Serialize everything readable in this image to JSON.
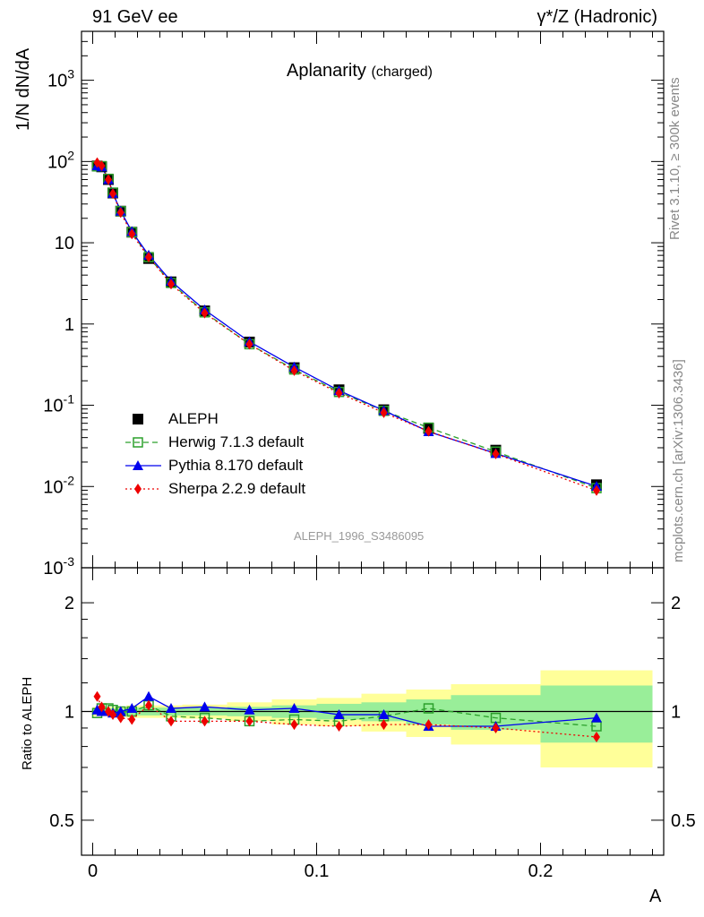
{
  "header": {
    "left": "91 GeV ee",
    "right": "γ*/Z (Hadronic)"
  },
  "side": {
    "rivet": "Rivet 3.1.10, ≥ 300k events",
    "mcplots": "mcplots.cern.ch [arXiv:1306.3436]"
  },
  "main_panel": {
    "title": "Aplanarity",
    "title_suffix": "(charged)",
    "ylabel": "1/N dN/dA",
    "watermark": "ALEPH_1996_S3486095",
    "y_ticks": [
      "10^-3",
      "10^-2",
      "10^-1",
      "1",
      "10",
      "10^2",
      "10^3"
    ]
  },
  "ratio_panel": {
    "ylabel": "Ratio to ALEPH",
    "y_ticks": [
      "0.5",
      "1",
      "2"
    ]
  },
  "x_axis": {
    "label": "A",
    "ticks": [
      "0",
      "0.1",
      "0.2"
    ]
  },
  "legend": [
    {
      "label": "ALEPH",
      "color": "#000000",
      "marker": "square-filled",
      "line": "none"
    },
    {
      "label": "Herwig 7.1.3 default",
      "color": "#2ca02c",
      "marker": "square-open",
      "line": "dashed"
    },
    {
      "label": "Pythia 8.170 default",
      "color": "#0000ee",
      "marker": "triangle",
      "line": "solid"
    },
    {
      "label": "Sherpa 2.2.9 default",
      "color": "#ee0000",
      "marker": "diamond",
      "line": "dotted"
    }
  ],
  "chart_data": {
    "type": "scatter",
    "xlim": [
      -0.005,
      0.255
    ],
    "ylim_main": [
      0.001,
      4000
    ],
    "y_scale_main": "log",
    "ylim_ratio": [
      0.4,
      2.5
    ],
    "y_scale_ratio": "log",
    "x": [
      0.002,
      0.004,
      0.007,
      0.009,
      0.0125,
      0.0175,
      0.025,
      0.035,
      0.05,
      0.07,
      0.09,
      0.11,
      0.13,
      0.15,
      0.18,
      0.225
    ],
    "data": [
      88,
      86,
      60,
      41,
      24.5,
      13.5,
      6.4,
      3.3,
      1.45,
      0.6,
      0.29,
      0.155,
      0.088,
      0.052,
      0.028,
      0.0105
    ],
    "data_band_inner": [
      0.02,
      0.02,
      0.02,
      0.02,
      0.02,
      0.025,
      0.025,
      0.025,
      0.025,
      0.03,
      0.04,
      0.05,
      0.06,
      0.08,
      0.11,
      0.18
    ],
    "data_band_outer": [
      0.03,
      0.03,
      0.03,
      0.03,
      0.03,
      0.04,
      0.04,
      0.04,
      0.045,
      0.06,
      0.08,
      0.09,
      0.12,
      0.15,
      0.19,
      0.3
    ],
    "x_bin_edges": [
      0,
      0.003,
      0.005,
      0.008,
      0.01,
      0.015,
      0.02,
      0.03,
      0.04,
      0.06,
      0.08,
      0.1,
      0.12,
      0.14,
      0.16,
      0.2,
      0.25
    ],
    "series": [
      {
        "name": "Herwig 7.1.3 default",
        "ratio": [
          0.99,
          1.02,
          1.02,
          1.01,
          1.0,
          1.0,
          1.04,
          0.97,
          0.96,
          0.94,
          0.95,
          0.94,
          0.97,
          1.02,
          0.96,
          0.91
        ]
      },
      {
        "name": "Pythia 8.170 default",
        "ratio": [
          1.01,
          1.0,
          1.0,
          0.99,
          1.0,
          1.02,
          1.1,
          1.02,
          1.03,
          1.01,
          1.02,
          0.98,
          0.98,
          0.91,
          0.91,
          0.96
        ]
      },
      {
        "name": "Sherpa 2.2.9 default",
        "ratio": [
          1.1,
          1.03,
          1.0,
          0.98,
          0.96,
          0.95,
          1.04,
          0.94,
          0.94,
          0.94,
          0.92,
          0.91,
          0.92,
          0.92,
          0.9,
          0.85
        ]
      }
    ]
  }
}
